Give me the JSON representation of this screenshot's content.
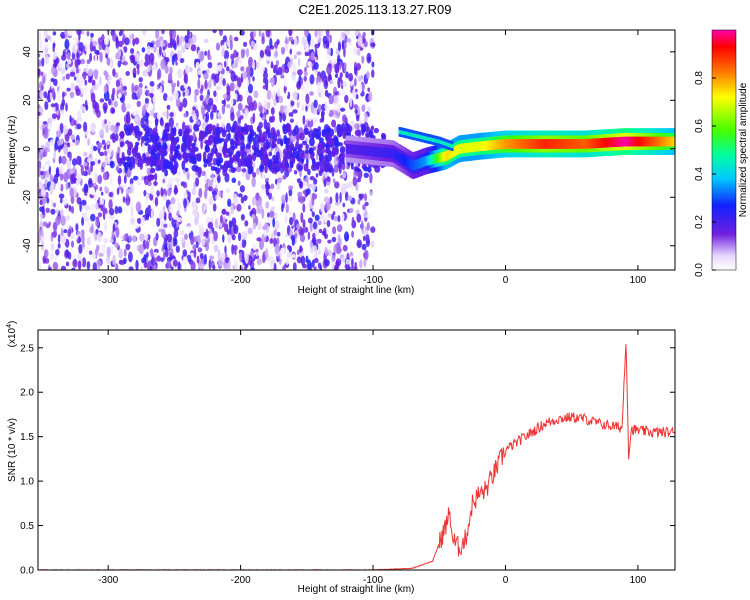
{
  "figure": {
    "title": "C2E1.2025.113.13.27.R09"
  },
  "chart_data": [
    {
      "type": "heatmap",
      "xlabel": "Height of straight line (km)",
      "ylabel": "Frequency (Hz)",
      "xlim": [
        -353,
        128
      ],
      "ylim": [
        -50,
        49
      ],
      "xticks": [
        -300,
        -200,
        -100,
        0,
        100
      ],
      "yticks": [
        -40,
        -20,
        0,
        20,
        40
      ],
      "grid": false,
      "colorbar": {
        "label": "Normalized spectral amplitude",
        "range": [
          0,
          1
        ],
        "ticks": [
          0.0,
          0.2,
          0.4,
          0.6,
          0.8
        ],
        "colormap": "rainbow (violet-blue-cyan-green-yellow-red-magenta)"
      },
      "features": {
        "noise_region_x": [
          -353,
          -100
        ],
        "noise_level": 0.15,
        "signal_onset_x": -80,
        "signal_track": [
          {
            "x": -120,
            "freq": 0,
            "amp": 0.18
          },
          {
            "x": -85,
            "freq": -2,
            "amp": 0.22
          },
          {
            "x": -70,
            "freq": -7,
            "amp": 0.3
          },
          {
            "x": -60,
            "freq": -5,
            "amp": 0.35
          },
          {
            "x": -45,
            "freq": -3,
            "amp": 0.75
          },
          {
            "x": -35,
            "freq": 0,
            "amp": 0.7
          },
          {
            "x": -20,
            "freq": 1,
            "amp": 0.7
          },
          {
            "x": 0,
            "freq": 2,
            "amp": 0.8
          },
          {
            "x": 30,
            "freq": 2,
            "amp": 0.9
          },
          {
            "x": 60,
            "freq": 2,
            "amp": 0.85
          },
          {
            "x": 90,
            "freq": 3,
            "amp": 1.0
          },
          {
            "x": 128,
            "freq": 3,
            "amp": 0.75
          }
        ],
        "secondary_branch": [
          {
            "x": -80,
            "freq": 7
          },
          {
            "x": -65,
            "freq": 5
          },
          {
            "x": -50,
            "freq": 3
          },
          {
            "x": -40,
            "freq": 1
          }
        ]
      }
    },
    {
      "type": "line",
      "xlabel": "Height of straight line (km)",
      "ylabel": "SNR (10 * v/v)",
      "y_multiplier": "(x10",
      "y_multiplier_exp": "4",
      "y_multiplier_close": ")",
      "xlim": [
        -353,
        128
      ],
      "ylim": [
        0,
        2.7
      ],
      "xticks": [
        -300,
        -200,
        -100,
        0,
        100
      ],
      "yticks": [
        0.0,
        0.5,
        1.0,
        1.5,
        2.0,
        2.5
      ],
      "grid": false,
      "series": [
        {
          "color": "#ee3333",
          "x": [
            -353,
            -150,
            -100,
            -70,
            -55,
            -45,
            -42,
            -40,
            -38,
            -35,
            -30,
            -25,
            -20,
            -15,
            -10,
            -5,
            0,
            10,
            20,
            30,
            40,
            50,
            60,
            70,
            80,
            88,
            91,
            93,
            95,
            100,
            110,
            120,
            128
          ],
          "y": [
            0.0,
            0.0,
            0.0,
            0.02,
            0.1,
            0.5,
            0.65,
            0.35,
            0.3,
            0.25,
            0.35,
            0.75,
            0.85,
            0.9,
            1.05,
            1.2,
            1.35,
            1.45,
            1.55,
            1.65,
            1.7,
            1.72,
            1.7,
            1.65,
            1.62,
            1.6,
            2.6,
            1.3,
            1.58,
            1.57,
            1.55,
            1.55,
            1.55
          ]
        }
      ]
    }
  ]
}
